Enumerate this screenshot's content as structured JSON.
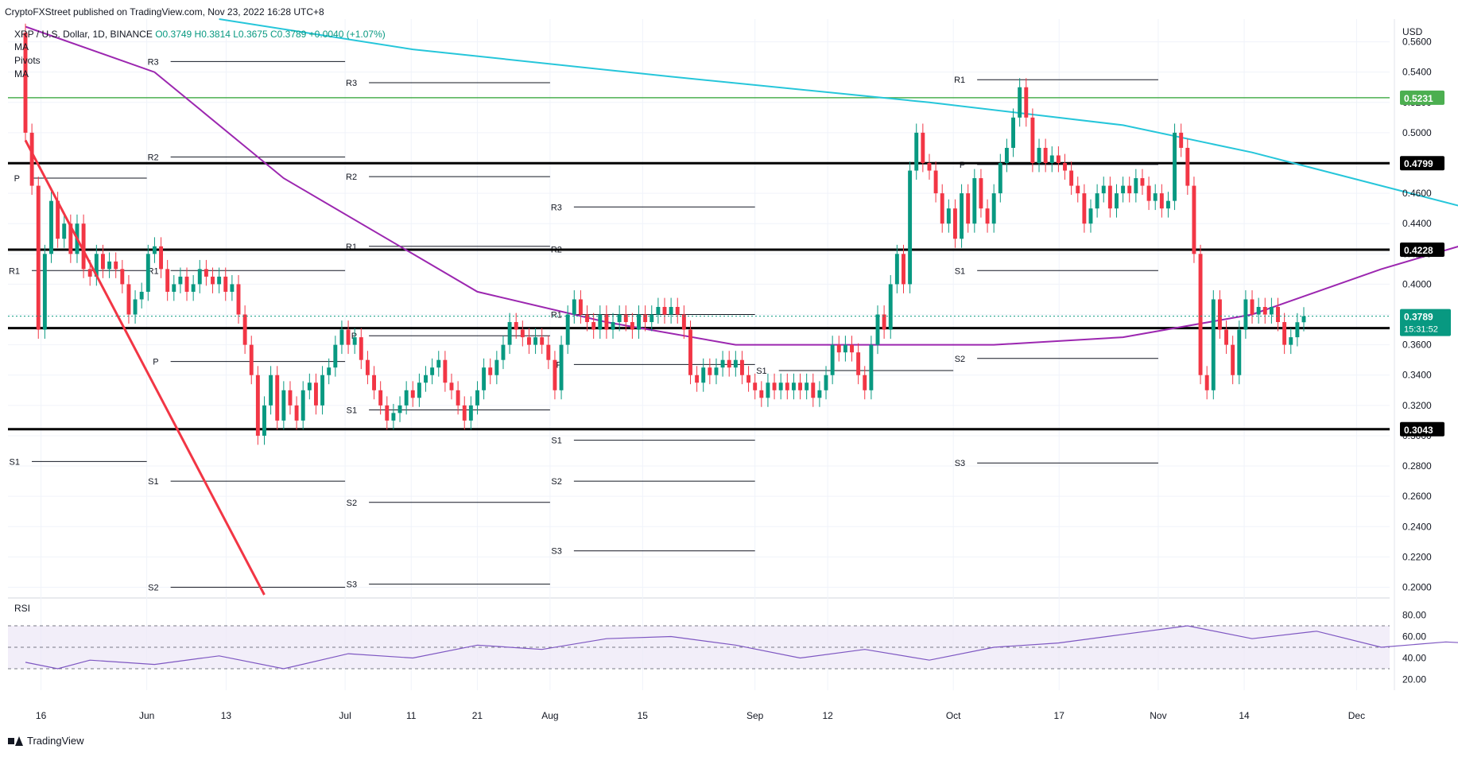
{
  "header": {
    "publisher_line": "CryptoFXStreet published on TradingView.com, Nov 23, 2022 16:28 UTC+8",
    "symbol": "XRP / U.S. Dollar, 1D, BINANCE",
    "ohlc": "O0.3749  H0.3814  L0.3675  C0.3789  +0.0040 (+1.07%)",
    "indicators": [
      "MA",
      "Pivots",
      "MA"
    ]
  },
  "footer": {
    "brand": "TradingView"
  },
  "colors": {
    "up": "#089981",
    "down": "#f23645",
    "ma_short": "#9c27b0",
    "ma_long": "#26c6da",
    "trend_green": "#4caf50",
    "trend_red": "#f23645",
    "level": "#000000",
    "resistance_green": "#4caf50",
    "rsi": "#7e57c2",
    "rsi_band": "#ede7f6"
  },
  "chart_data": {
    "type": "candlestick",
    "price_axis": {
      "currency": "USD",
      "ticks": [
        "0.5600",
        "0.5400",
        "0.5200",
        "0.5000",
        "0.4800",
        "0.4600",
        "0.4400",
        "0.4200",
        "0.4000",
        "0.3800",
        "0.3600",
        "0.3400",
        "0.3200",
        "0.3000",
        "0.2800",
        "0.2600",
        "0.2400",
        "0.2200",
        "0.2000"
      ],
      "range": [
        0.195,
        0.575
      ]
    },
    "time_axis": {
      "labels": [
        {
          "label": "16",
          "date": "2022-05-16"
        },
        {
          "label": "Jun",
          "date": "2022-06-01"
        },
        {
          "label": "13",
          "date": "2022-06-13"
        },
        {
          "label": "Jul",
          "date": "2022-07-01"
        },
        {
          "label": "11",
          "date": "2022-07-11"
        },
        {
          "label": "21",
          "date": "2022-07-21"
        },
        {
          "label": "Aug",
          "date": "2022-08-01"
        },
        {
          "label": "15",
          "date": "2022-08-15"
        },
        {
          "label": "Sep",
          "date": "2022-09-01"
        },
        {
          "label": "12",
          "date": "2022-09-12"
        },
        {
          "label": "Oct",
          "date": "2022-10-01"
        },
        {
          "label": "17",
          "date": "2022-10-17"
        },
        {
          "label": "Nov",
          "date": "2022-11-01"
        },
        {
          "label": "14",
          "date": "2022-11-14"
        },
        {
          "label": "Dec",
          "date": "2022-12-01"
        }
      ],
      "range": [
        "2022-05-11",
        "2022-12-06"
      ]
    },
    "current_price": {
      "value": 0.3789,
      "label": "0.3789",
      "countdown": "15:31:52"
    },
    "key_levels": [
      {
        "value": 0.5231,
        "label": "0.5231",
        "color": "#4caf50"
      },
      {
        "value": 0.4799,
        "label": "0.4799",
        "color": "#000000"
      },
      {
        "value": 0.4228,
        "label": "0.4228",
        "color": "#000000"
      },
      {
        "value": 0.371,
        "label": "0.3710",
        "color": "#000000"
      },
      {
        "value": 0.3043,
        "label": "0.3043",
        "color": "#000000"
      }
    ],
    "pivots": [
      {
        "from": "2022-05-11",
        "to": "2022-06-01",
        "levels": [
          {
            "name": "P",
            "value": 0.47
          },
          {
            "name": "S1",
            "value": 0.283
          },
          {
            "name": "R1",
            "value": 0.409
          }
        ]
      },
      {
        "from": "2022-06-01",
        "to": "2022-07-01",
        "levels": [
          {
            "name": "R3",
            "value": 0.547
          },
          {
            "name": "R2",
            "value": 0.484
          },
          {
            "name": "R1",
            "value": 0.409
          },
          {
            "name": "P",
            "value": 0.349
          },
          {
            "name": "S1",
            "value": 0.27
          },
          {
            "name": "S2",
            "value": 0.2
          }
        ]
      },
      {
        "from": "2022-07-01",
        "to": "2022-08-01",
        "levels": [
          {
            "name": "R3",
            "value": 0.533
          },
          {
            "name": "R2",
            "value": 0.471
          },
          {
            "name": "R1",
            "value": 0.425
          },
          {
            "name": "P",
            "value": 0.366
          },
          {
            "name": "S1",
            "value": 0.317
          },
          {
            "name": "S2",
            "value": 0.256
          },
          {
            "name": "S3",
            "value": 0.202
          }
        ]
      },
      {
        "from": "2022-08-01",
        "to": "2022-09-01",
        "levels": [
          {
            "name": "R3",
            "value": 0.451
          },
          {
            "name": "R2",
            "value": 0.423
          },
          {
            "name": "R1",
            "value": 0.38
          },
          {
            "name": "P",
            "value": 0.347
          },
          {
            "name": "S1",
            "value": 0.297
          },
          {
            "name": "S2",
            "value": 0.27
          },
          {
            "name": "S3",
            "value": 0.224
          }
        ]
      },
      {
        "from": "2022-09-01",
        "to": "2022-10-01",
        "levels": [
          {
            "name": "S1",
            "value": 0.343
          }
        ]
      },
      {
        "from": "2022-10-01",
        "to": "2022-11-01",
        "levels": [
          {
            "name": "R1",
            "value": 0.535
          },
          {
            "name": "P",
            "value": 0.479
          },
          {
            "name": "S1",
            "value": 0.409
          },
          {
            "name": "S2",
            "value": 0.351
          },
          {
            "name": "S3",
            "value": 0.282
          }
        ]
      }
    ],
    "candles_close": [
      [
        0.566,
        0.5
      ],
      [
        0.5,
        0.465
      ],
      [
        0.465,
        0.37
      ],
      [
        0.37,
        0.42
      ],
      [
        0.42,
        0.455
      ],
      [
        0.455,
        0.43
      ],
      [
        0.43,
        0.44
      ],
      [
        0.44,
        0.42
      ],
      [
        0.42,
        0.44
      ],
      [
        0.44,
        0.41
      ],
      [
        0.41,
        0.405
      ],
      [
        0.405,
        0.42
      ],
      [
        0.42,
        0.41
      ],
      [
        0.41,
        0.415
      ],
      [
        0.415,
        0.41
      ],
      [
        0.41,
        0.4
      ],
      [
        0.4,
        0.38
      ],
      [
        0.38,
        0.39
      ],
      [
        0.39,
        0.395
      ],
      [
        0.395,
        0.42
      ],
      [
        0.42,
        0.425
      ],
      [
        0.425,
        0.41
      ],
      [
        0.41,
        0.395
      ],
      [
        0.395,
        0.4
      ],
      [
        0.4,
        0.405
      ],
      [
        0.405,
        0.395
      ],
      [
        0.395,
        0.4
      ],
      [
        0.4,
        0.41
      ],
      [
        0.41,
        0.405
      ],
      [
        0.405,
        0.4
      ],
      [
        0.4,
        0.405
      ],
      [
        0.405,
        0.395
      ],
      [
        0.395,
        0.4
      ],
      [
        0.4,
        0.38
      ],
      [
        0.38,
        0.36
      ],
      [
        0.36,
        0.34
      ],
      [
        0.34,
        0.3
      ],
      [
        0.3,
        0.32
      ],
      [
        0.32,
        0.34
      ],
      [
        0.34,
        0.31
      ],
      [
        0.31,
        0.33
      ],
      [
        0.33,
        0.32
      ],
      [
        0.32,
        0.31
      ],
      [
        0.31,
        0.33
      ],
      [
        0.33,
        0.335
      ],
      [
        0.335,
        0.32
      ],
      [
        0.32,
        0.34
      ],
      [
        0.34,
        0.345
      ],
      [
        0.345,
        0.36
      ],
      [
        0.36,
        0.37
      ],
      [
        0.37,
        0.36
      ],
      [
        0.36,
        0.365
      ],
      [
        0.365,
        0.35
      ],
      [
        0.35,
        0.34
      ],
      [
        0.34,
        0.33
      ],
      [
        0.33,
        0.32
      ],
      [
        0.32,
        0.31
      ],
      [
        0.31,
        0.315
      ],
      [
        0.315,
        0.32
      ],
      [
        0.32,
        0.33
      ],
      [
        0.33,
        0.325
      ],
      [
        0.325,
        0.335
      ],
      [
        0.335,
        0.34
      ],
      [
        0.34,
        0.345
      ],
      [
        0.345,
        0.35
      ],
      [
        0.35,
        0.335
      ],
      [
        0.335,
        0.33
      ],
      [
        0.33,
        0.32
      ],
      [
        0.32,
        0.31
      ],
      [
        0.31,
        0.32
      ],
      [
        0.32,
        0.33
      ],
      [
        0.33,
        0.345
      ],
      [
        0.345,
        0.34
      ],
      [
        0.34,
        0.35
      ],
      [
        0.35,
        0.36
      ],
      [
        0.36,
        0.375
      ],
      [
        0.375,
        0.37
      ],
      [
        0.37,
        0.365
      ],
      [
        0.365,
        0.36
      ],
      [
        0.36,
        0.365
      ],
      [
        0.365,
        0.36
      ],
      [
        0.36,
        0.35
      ],
      [
        0.35,
        0.33
      ],
      [
        0.33,
        0.36
      ],
      [
        0.36,
        0.38
      ],
      [
        0.38,
        0.39
      ],
      [
        0.39,
        0.38
      ],
      [
        0.38,
        0.375
      ],
      [
        0.375,
        0.37
      ],
      [
        0.37,
        0.38
      ],
      [
        0.38,
        0.37
      ],
      [
        0.37,
        0.375
      ],
      [
        0.375,
        0.38
      ],
      [
        0.38,
        0.375
      ],
      [
        0.375,
        0.37
      ],
      [
        0.37,
        0.38
      ],
      [
        0.38,
        0.375
      ],
      [
        0.375,
        0.38
      ],
      [
        0.38,
        0.385
      ],
      [
        0.385,
        0.38
      ],
      [
        0.38,
        0.385
      ],
      [
        0.385,
        0.38
      ],
      [
        0.38,
        0.37
      ],
      [
        0.37,
        0.34
      ],
      [
        0.34,
        0.335
      ],
      [
        0.335,
        0.345
      ],
      [
        0.345,
        0.34
      ],
      [
        0.34,
        0.345
      ],
      [
        0.345,
        0.35
      ],
      [
        0.35,
        0.345
      ],
      [
        0.345,
        0.35
      ],
      [
        0.35,
        0.34
      ],
      [
        0.34,
        0.335
      ],
      [
        0.335,
        0.33
      ],
      [
        0.33,
        0.325
      ],
      [
        0.325,
        0.335
      ],
      [
        0.335,
        0.33
      ],
      [
        0.33,
        0.335
      ],
      [
        0.335,
        0.33
      ],
      [
        0.33,
        0.335
      ],
      [
        0.335,
        0.33
      ],
      [
        0.33,
        0.335
      ],
      [
        0.335,
        0.325
      ],
      [
        0.325,
        0.33
      ],
      [
        0.33,
        0.34
      ],
      [
        0.34,
        0.36
      ],
      [
        0.36,
        0.355
      ],
      [
        0.355,
        0.36
      ],
      [
        0.36,
        0.355
      ],
      [
        0.355,
        0.34
      ],
      [
        0.34,
        0.33
      ],
      [
        0.33,
        0.36
      ],
      [
        0.36,
        0.38
      ],
      [
        0.38,
        0.37
      ],
      [
        0.37,
        0.4
      ],
      [
        0.4,
        0.42
      ],
      [
        0.42,
        0.4
      ],
      [
        0.4,
        0.475
      ],
      [
        0.475,
        0.5
      ],
      [
        0.5,
        0.48
      ],
      [
        0.48,
        0.475
      ],
      [
        0.475,
        0.46
      ],
      [
        0.46,
        0.44
      ],
      [
        0.44,
        0.45
      ],
      [
        0.45,
        0.43
      ],
      [
        0.43,
        0.46
      ],
      [
        0.46,
        0.44
      ],
      [
        0.44,
        0.47
      ],
      [
        0.47,
        0.45
      ],
      [
        0.45,
        0.44
      ],
      [
        0.44,
        0.46
      ],
      [
        0.46,
        0.48
      ],
      [
        0.48,
        0.49
      ],
      [
        0.49,
        0.51
      ],
      [
        0.51,
        0.53
      ],
      [
        0.53,
        0.51
      ],
      [
        0.51,
        0.48
      ],
      [
        0.48,
        0.49
      ],
      [
        0.49,
        0.48
      ],
      [
        0.48,
        0.485
      ],
      [
        0.485,
        0.48
      ],
      [
        0.48,
        0.475
      ],
      [
        0.475,
        0.465
      ],
      [
        0.465,
        0.46
      ],
      [
        0.46,
        0.44
      ],
      [
        0.44,
        0.45
      ],
      [
        0.45,
        0.46
      ],
      [
        0.46,
        0.465
      ],
      [
        0.465,
        0.45
      ],
      [
        0.45,
        0.46
      ],
      [
        0.46,
        0.465
      ],
      [
        0.465,
        0.46
      ],
      [
        0.46,
        0.47
      ],
      [
        0.47,
        0.465
      ],
      [
        0.465,
        0.455
      ],
      [
        0.455,
        0.46
      ],
      [
        0.46,
        0.45
      ],
      [
        0.45,
        0.455
      ],
      [
        0.455,
        0.5
      ],
      [
        0.5,
        0.49
      ],
      [
        0.49,
        0.465
      ],
      [
        0.465,
        0.42
      ],
      [
        0.42,
        0.34
      ],
      [
        0.34,
        0.33
      ],
      [
        0.33,
        0.39
      ],
      [
        0.39,
        0.37
      ],
      [
        0.37,
        0.36
      ],
      [
        0.36,
        0.34
      ],
      [
        0.34,
        0.37
      ],
      [
        0.37,
        0.39
      ],
      [
        0.39,
        0.38
      ],
      [
        0.38,
        0.385
      ],
      [
        0.385,
        0.38
      ],
      [
        0.38,
        0.385
      ],
      [
        0.385,
        0.375
      ],
      [
        0.375,
        0.36
      ],
      [
        0.36,
        0.365
      ],
      [
        0.365,
        0.3749
      ],
      [
        0.3749,
        0.3789
      ]
    ],
    "ma_short": [
      [
        0,
        0.57
      ],
      [
        20,
        0.54
      ],
      [
        40,
        0.47
      ],
      [
        60,
        0.42
      ],
      [
        70,
        0.395
      ],
      [
        90,
        0.375
      ],
      [
        110,
        0.36
      ],
      [
        130,
        0.36
      ],
      [
        150,
        0.36
      ],
      [
        170,
        0.365
      ],
      [
        190,
        0.38
      ],
      [
        210,
        0.41
      ],
      [
        230,
        0.435
      ],
      [
        250,
        0.465
      ],
      [
        260,
        0.465
      ],
      [
        275,
        0.455
      ]
    ],
    "ma_long": [
      [
        30,
        0.575
      ],
      [
        60,
        0.555
      ],
      [
        100,
        0.537
      ],
      [
        140,
        0.52
      ],
      [
        170,
        0.505
      ],
      [
        190,
        0.487
      ],
      [
        210,
        0.465
      ],
      [
        230,
        0.443
      ],
      [
        250,
        0.42
      ],
      [
        260,
        0.41
      ],
      [
        275,
        0.403
      ]
    ],
    "rsi": {
      "label": "RSI",
      "ticks": [
        "80.00",
        "60.00",
        "40.00",
        "20.00"
      ],
      "upper_band": 70,
      "lower_band": 30,
      "values": [
        [
          0,
          36
        ],
        [
          5,
          30
        ],
        [
          10,
          38
        ],
        [
          20,
          34
        ],
        [
          30,
          42
        ],
        [
          40,
          30
        ],
        [
          50,
          44
        ],
        [
          60,
          40
        ],
        [
          70,
          52
        ],
        [
          80,
          48
        ],
        [
          90,
          58
        ],
        [
          100,
          60
        ],
        [
          110,
          52
        ],
        [
          120,
          40
        ],
        [
          130,
          48
        ],
        [
          140,
          38
        ],
        [
          150,
          50
        ],
        [
          160,
          54
        ],
        [
          170,
          62
        ],
        [
          180,
          70
        ],
        [
          190,
          58
        ],
        [
          200,
          65
        ],
        [
          210,
          50
        ],
        [
          220,
          55
        ],
        [
          230,
          52
        ],
        [
          240,
          38
        ],
        [
          250,
          42
        ],
        [
          255,
          60
        ],
        [
          260,
          42
        ],
        [
          265,
          32
        ],
        [
          270,
          42
        ],
        [
          275,
          44
        ]
      ]
    }
  }
}
